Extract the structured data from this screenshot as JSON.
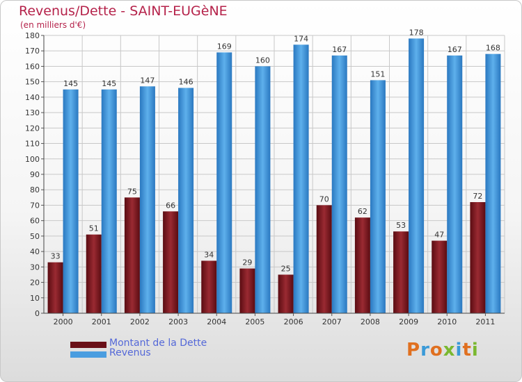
{
  "title": "Revenus/Dette - SAINT-EUGèNE",
  "subtitle": "(en milliers d'€)",
  "chart_data": {
    "type": "bar",
    "categories": [
      "2000",
      "2001",
      "2002",
      "2003",
      "2004",
      "2005",
      "2006",
      "2007",
      "2008",
      "2009",
      "2010",
      "2011"
    ],
    "series": [
      {
        "name": "Montant de la Dette",
        "values": [
          33,
          51,
          75,
          66,
          34,
          29,
          25,
          70,
          62,
          53,
          47,
          72
        ],
        "color": "#7a1a22"
      },
      {
        "name": "Revenus",
        "values": [
          145,
          145,
          147,
          146,
          169,
          160,
          174,
          167,
          151,
          178,
          167,
          168
        ],
        "color": "#4a9de0"
      }
    ],
    "yticks": [
      0,
      10,
      20,
      30,
      40,
      50,
      60,
      70,
      80,
      90,
      100,
      110,
      120,
      130,
      140,
      150,
      160,
      170,
      180
    ],
    "ylim": [
      0,
      180
    ],
    "grid": true,
    "legend_position": "bottom-left",
    "colors": {
      "axis_text": "#333333",
      "grid": "#c8c8c8",
      "value_label": "#333333"
    }
  },
  "legend": {
    "debt_label": "Montant de la Dette",
    "revenue_label": "Revenus"
  },
  "logo": {
    "text": "Proxiti",
    "letters": [
      "P",
      "r",
      "o",
      "x",
      "i",
      "t",
      "i"
    ],
    "colors": [
      "#e07020",
      "#3a9ad8",
      "#e07020",
      "#7ab830",
      "#3a9ad8",
      "#e07020",
      "#7ab830"
    ]
  }
}
